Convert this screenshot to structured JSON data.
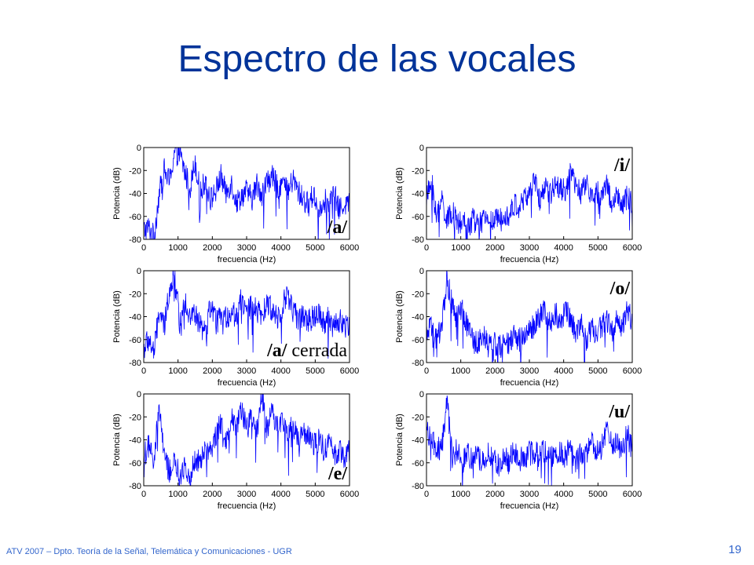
{
  "slide": {
    "title": "Espectro de las vocales",
    "footer": "ATV 2007 – Dpto. Teoría de la Señal, Telemática y Comunicaciones - UGR",
    "page_number": "19"
  },
  "colors": {
    "title": "#003399",
    "line": "#0000ff",
    "footer": "#3366cc"
  },
  "chart_data": [
    {
      "type": "line",
      "vowel": "/a/",
      "xlabel": "frecuencia (Hz)",
      "ylabel": "Potencia (dB)",
      "xlim": [
        0,
        6000
      ],
      "ylim": [
        -80,
        0
      ],
      "xticks": [
        0,
        1000,
        2000,
        3000,
        4000,
        5000,
        6000
      ],
      "yticks": [
        0,
        -20,
        -40,
        -60,
        -80
      ],
      "series": [
        {
          "x": [
            0,
            150,
            300,
            450,
            600,
            750,
            900,
            1050,
            1200,
            1350,
            1500,
            1650,
            1800,
            1950,
            2100,
            2250,
            2400,
            2550,
            2700,
            2850,
            3000,
            3150,
            3300,
            3450,
            3600,
            3750,
            3900,
            4050,
            4200,
            4350,
            4500,
            4650,
            4800,
            4950,
            5100,
            5250,
            5400,
            5550,
            5700,
            5850,
            6000
          ],
          "y": [
            -72,
            -70,
            -78,
            -40,
            -20,
            -30,
            -3,
            -5,
            -22,
            -35,
            -12,
            -40,
            -28,
            -45,
            -38,
            -25,
            -40,
            -30,
            -48,
            -42,
            -38,
            -45,
            -32,
            -40,
            -30,
            -25,
            -35,
            -30,
            -40,
            -28,
            -38,
            -45,
            -50,
            -40,
            -55,
            -45,
            -50,
            -40,
            -55,
            -48,
            -50
          ]
        }
      ]
    },
    {
      "type": "line",
      "vowel": "/i/",
      "xlabel": "frecuencia (Hz)",
      "ylabel": "Potencia (dB)",
      "xlim": [
        0,
        6000
      ],
      "ylim": [
        -80,
        0
      ],
      "xticks": [
        0,
        1000,
        2000,
        3000,
        4000,
        5000,
        6000
      ],
      "yticks": [
        0,
        -20,
        -40,
        -60,
        -80
      ],
      "series": [
        {
          "x": [
            0,
            150,
            300,
            450,
            600,
            750,
            900,
            1050,
            1200,
            1350,
            1500,
            1650,
            1800,
            1950,
            2100,
            2250,
            2400,
            2550,
            2700,
            2850,
            3000,
            3150,
            3300,
            3450,
            3600,
            3750,
            3900,
            4050,
            4200,
            4350,
            4500,
            4650,
            4800,
            4950,
            5100,
            5250,
            5400,
            5550,
            5700,
            5850,
            6000
          ],
          "y": [
            -45,
            -30,
            -62,
            -45,
            -65,
            -55,
            -68,
            -65,
            -70,
            -62,
            -68,
            -65,
            -60,
            -66,
            -62,
            -55,
            -60,
            -50,
            -52,
            -45,
            -40,
            -30,
            -45,
            -35,
            -42,
            -30,
            -35,
            -38,
            -20,
            -35,
            -40,
            -30,
            -45,
            -38,
            -42,
            -30,
            -50,
            -40,
            -55,
            -42,
            -50
          ]
        }
      ]
    },
    {
      "type": "line",
      "vowel": "/a/",
      "vowel_suffix": " cerrada",
      "xlabel": "frecuencia (Hz)",
      "ylabel": "Potencia (dB)",
      "xlim": [
        0,
        6000
      ],
      "ylim": [
        -80,
        0
      ],
      "xticks": [
        0,
        1000,
        2000,
        3000,
        4000,
        5000,
        6000
      ],
      "yticks": [
        0,
        -20,
        -40,
        -60,
        -80
      ],
      "series": [
        {
          "x": [
            0,
            150,
            300,
            450,
            600,
            750,
            900,
            1050,
            1200,
            1350,
            1500,
            1650,
            1800,
            1950,
            2100,
            2250,
            2400,
            2550,
            2700,
            2850,
            3000,
            3150,
            3300,
            3450,
            3600,
            3750,
            3900,
            4050,
            4200,
            4350,
            4500,
            4650,
            4800,
            4950,
            5100,
            5250,
            5400,
            5550,
            5700,
            5850,
            6000
          ],
          "y": [
            -68,
            -60,
            -72,
            -35,
            -50,
            -15,
            -3,
            -45,
            -25,
            -40,
            -38,
            -48,
            -55,
            -30,
            -45,
            -40,
            -42,
            -35,
            -40,
            -22,
            -38,
            -30,
            -35,
            -40,
            -28,
            -35,
            -40,
            -30,
            -20,
            -35,
            -42,
            -38,
            -45,
            -40,
            -35,
            -45,
            -40,
            -50,
            -42,
            -48,
            -45
          ]
        }
      ]
    },
    {
      "type": "line",
      "vowel": "/o/",
      "xlabel": "frecuencia (Hz)",
      "ylabel": "Potencia (dB)",
      "xlim": [
        0,
        6000
      ],
      "ylim": [
        -80,
        0
      ],
      "xticks": [
        0,
        1000,
        2000,
        3000,
        4000,
        5000,
        6000
      ],
      "yticks": [
        0,
        -20,
        -40,
        -60,
        -80
      ],
      "series": [
        {
          "x": [
            0,
            150,
            300,
            450,
            600,
            750,
            900,
            1050,
            1200,
            1350,
            1500,
            1650,
            1800,
            1950,
            2100,
            2250,
            2400,
            2550,
            2700,
            2850,
            3000,
            3150,
            3300,
            3450,
            3600,
            3750,
            3900,
            4050,
            4200,
            4350,
            4500,
            4650,
            4800,
            4950,
            5100,
            5250,
            5400,
            5550,
            5700,
            5850,
            6000
          ],
          "y": [
            -55,
            -50,
            -62,
            -45,
            -8,
            -30,
            -42,
            -35,
            -48,
            -58,
            -62,
            -55,
            -65,
            -60,
            -68,
            -62,
            -65,
            -58,
            -60,
            -55,
            -52,
            -48,
            -40,
            -35,
            -45,
            -38,
            -42,
            -36,
            -40,
            -55,
            -45,
            -60,
            -50,
            -55,
            -48,
            -42,
            -55,
            -40,
            -50,
            -32,
            -45
          ]
        }
      ]
    },
    {
      "type": "line",
      "vowel": "/e/",
      "xlabel": "frecuencia (Hz)",
      "ylabel": "Potencia (dB)",
      "xlim": [
        0,
        6000
      ],
      "ylim": [
        -80,
        0
      ],
      "xticks": [
        0,
        1000,
        2000,
        3000,
        4000,
        5000,
        6000
      ],
      "yticks": [
        0,
        -20,
        -40,
        -60,
        -80
      ],
      "series": [
        {
          "x": [
            0,
            150,
            300,
            450,
            600,
            750,
            900,
            1050,
            1200,
            1350,
            1500,
            1650,
            1800,
            1950,
            2100,
            2250,
            2400,
            2550,
            2700,
            2850,
            3000,
            3150,
            3300,
            3450,
            3600,
            3750,
            3900,
            4050,
            4200,
            4350,
            4500,
            4650,
            4800,
            4950,
            5100,
            5250,
            5400,
            5550,
            5700,
            5850,
            6000
          ],
          "y": [
            -55,
            -45,
            -62,
            -10,
            -55,
            -68,
            -60,
            -72,
            -65,
            -70,
            -55,
            -60,
            -45,
            -50,
            -35,
            -25,
            -40,
            -18,
            -28,
            -15,
            -30,
            -20,
            -35,
            -2,
            -30,
            -15,
            -28,
            -20,
            -35,
            -28,
            -40,
            -35,
            -38,
            -45,
            -40,
            -48,
            -42,
            -52,
            -48,
            -55,
            -50
          ]
        }
      ]
    },
    {
      "type": "line",
      "vowel": "/u/",
      "xlabel": "frecuencia (Hz)",
      "ylabel": "Potencia (dB)",
      "xlim": [
        0,
        6000
      ],
      "ylim": [
        -80,
        0
      ],
      "xticks": [
        0,
        1000,
        2000,
        3000,
        4000,
        5000,
        6000
      ],
      "yticks": [
        0,
        -20,
        -40,
        -60,
        -80
      ],
      "series": [
        {
          "x": [
            0,
            150,
            300,
            450,
            600,
            750,
            900,
            1050,
            1200,
            1350,
            1500,
            1650,
            1800,
            1950,
            2100,
            2250,
            2400,
            2550,
            2700,
            2850,
            3000,
            3150,
            3300,
            3450,
            3600,
            3750,
            3900,
            4050,
            4200,
            4350,
            4500,
            4650,
            4800,
            4950,
            5100,
            5250,
            5400,
            5550,
            5700,
            5850,
            6000
          ],
          "y": [
            -30,
            -40,
            -50,
            -45,
            -5,
            -55,
            -48,
            -60,
            -52,
            -58,
            -55,
            -60,
            -52,
            -58,
            -62,
            -55,
            -60,
            -50,
            -58,
            -55,
            -52,
            -50,
            -55,
            -48,
            -55,
            -52,
            -50,
            -55,
            -45,
            -58,
            -50,
            -55,
            -40,
            -52,
            -48,
            -30,
            -45,
            -40,
            -50,
            -35,
            -48
          ]
        }
      ]
    }
  ]
}
